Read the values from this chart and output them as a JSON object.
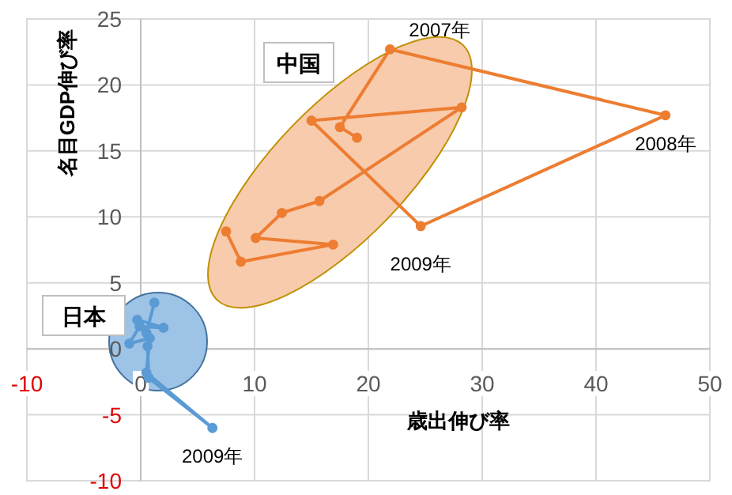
{
  "chart_data": {
    "type": "line",
    "xlabel": "歳出伸び率",
    "ylabel": "名目GDP伸び率",
    "xlim": [
      -10,
      50
    ],
    "ylim": [
      -10,
      25
    ],
    "xticks": [
      -10,
      0,
      10,
      20,
      30,
      40,
      50
    ],
    "yticks": [
      -10,
      -5,
      0,
      5,
      10,
      15,
      20,
      25
    ],
    "grid": true,
    "marker": "circle",
    "line_style": "solid",
    "series": [
      {
        "name": "中国",
        "color": "#ed7d31",
        "x": [
          19.0,
          17.5,
          21.9,
          46.1,
          24.6,
          15.0,
          28.2,
          15.7,
          12.4,
          10.1,
          16.9,
          8.8,
          7.5
        ],
        "values": [
          16.0,
          16.8,
          22.7,
          17.7,
          9.3,
          17.3,
          18.3,
          11.2,
          10.3,
          8.4,
          7.9,
          6.6,
          8.9
        ]
      },
      {
        "name": "日本",
        "color": "#5b9bd5",
        "x": [
          1.2,
          0.5,
          -0.3,
          2.0,
          -0.1,
          -1.0,
          0.8,
          0.5,
          6.3,
          0.7,
          0.6
        ],
        "values": [
          3.5,
          1.2,
          2.2,
          1.6,
          1.7,
          0.4,
          0.8,
          -1.8,
          -6.0,
          -2.2,
          0.2
        ]
      }
    ],
    "annotations": [
      {
        "text": "2007年",
        "x": 21.9,
        "y": 22.7
      },
      {
        "text": "2008年",
        "x": 46.1,
        "y": 17.7
      },
      {
        "text": "2009年",
        "x": 24.6,
        "y": 9.3
      },
      {
        "text": "2009年",
        "x": 6.3,
        "y": -6.0
      }
    ]
  }
}
